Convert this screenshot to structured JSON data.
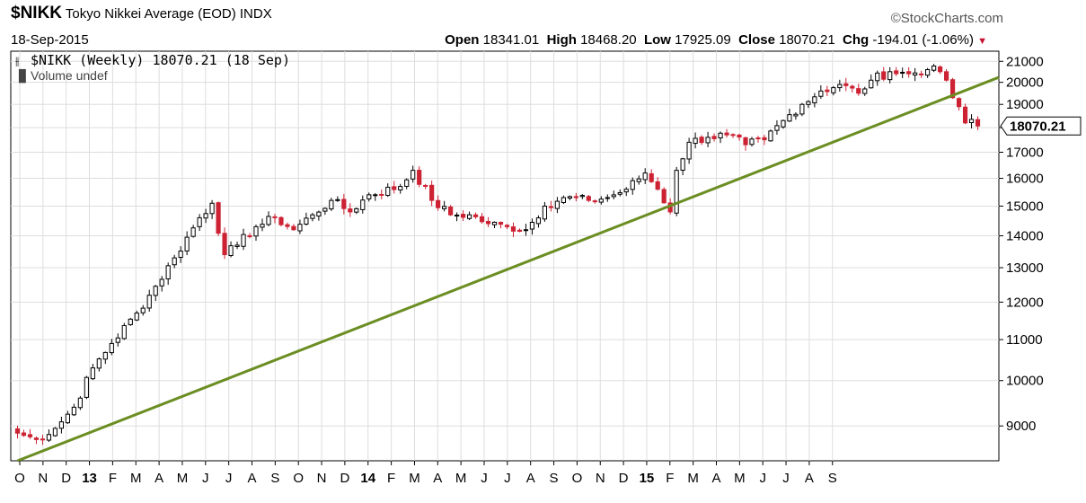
{
  "header": {
    "symbol": "$NIKK",
    "name": "Tokyo Nikkei Average (EOD)",
    "exchange": "INDX",
    "date": "18-Sep-2015",
    "brand": "©StockCharts.com",
    "open_label": "Open",
    "open": "18341.01",
    "high_label": "High",
    "high": "18468.20",
    "low_label": "Low",
    "low": "17925.09",
    "close_label": "Close",
    "close": "18070.21",
    "chg_label": "Chg",
    "chg": "-194.01 (-1.06%)"
  },
  "legend": {
    "main": "$NIKK (Weekly) 18070.21 (18 Sep)",
    "volume": "Volume undef"
  },
  "colors": {
    "up": "#000000",
    "down": "#cc2233",
    "trendline": "#6b8e23",
    "grid": "#dddddd"
  },
  "chart_data": {
    "type": "candlestick",
    "scale": "log",
    "ylim": [
      8300,
      21500
    ],
    "y_ticks": [
      9000,
      10000,
      11000,
      12000,
      13000,
      14000,
      15000,
      16000,
      17000,
      18000,
      19000,
      20000,
      21000
    ],
    "x_tick_labels": [
      "O",
      "N",
      "D",
      "13",
      "F",
      "M",
      "A",
      "M",
      "J",
      "J",
      "A",
      "S",
      "O",
      "N",
      "D",
      "14",
      "F",
      "M",
      "A",
      "M",
      "J",
      "J",
      "A",
      "S",
      "O",
      "N",
      "D",
      "15",
      "F",
      "M",
      "A",
      "M",
      "J",
      "J",
      "A",
      "S"
    ],
    "last_value_label": "18070.21",
    "last_value": 18070.21,
    "trendline": {
      "start": {
        "week": 0,
        "value": 8300
      },
      "end": {
        "week": 153,
        "value": 19850
      }
    },
    "anchors": [
      [
        0,
        8850
      ],
      [
        3,
        8720
      ],
      [
        6,
        8950
      ],
      [
        9,
        9400
      ],
      [
        12,
        10300
      ],
      [
        15,
        10900
      ],
      [
        19,
        11700
      ],
      [
        22,
        12450
      ],
      [
        25,
        13300
      ],
      [
        29,
        14600
      ],
      [
        31,
        15100
      ],
      [
        33,
        13400
      ],
      [
        35,
        13700
      ],
      [
        38,
        14300
      ],
      [
        41,
        14600
      ],
      [
        44,
        14200
      ],
      [
        47,
        14700
      ],
      [
        50,
        15200
      ],
      [
        53,
        14800
      ],
      [
        56,
        15400
      ],
      [
        61,
        15700
      ],
      [
        63,
        16300
      ],
      [
        66,
        15200
      ],
      [
        69,
        14700
      ],
      [
        72,
        14700
      ],
      [
        75,
        14400
      ],
      [
        78,
        14300
      ],
      [
        81,
        14200
      ],
      [
        84,
        15000
      ],
      [
        87,
        15300
      ],
      [
        91,
        15200
      ],
      [
        94,
        15300
      ],
      [
        97,
        15600
      ],
      [
        100,
        16200
      ],
      [
        102,
        15600
      ],
      [
        104,
        14800
      ],
      [
        105,
        16300
      ],
      [
        107,
        17400
      ],
      [
        110,
        17600
      ],
      [
        113,
        17700
      ],
      [
        116,
        17300
      ],
      [
        119,
        17500
      ],
      [
        122,
        18300
      ],
      [
        125,
        19000
      ],
      [
        128,
        19600
      ],
      [
        131,
        19900
      ],
      [
        134,
        19500
      ],
      [
        136,
        20100
      ],
      [
        139,
        20500
      ],
      [
        142,
        20400
      ],
      [
        145,
        20600
      ],
      [
        147,
        20500
      ],
      [
        148,
        20100
      ],
      [
        149,
        19300
      ],
      [
        150,
        18900
      ],
      [
        151,
        18200
      ],
      [
        152,
        18350
      ],
      [
        153,
        18070
      ]
    ]
  }
}
